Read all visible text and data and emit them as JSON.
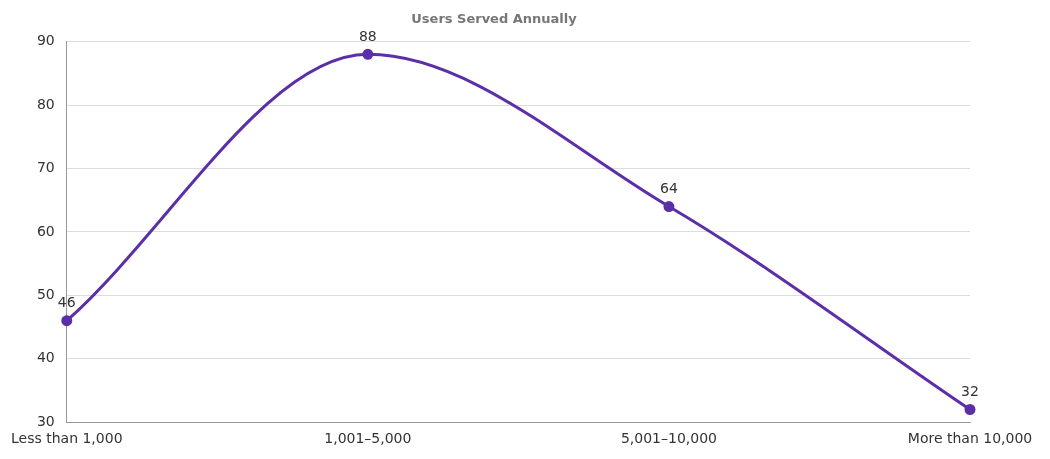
{
  "chart_data": {
    "type": "line",
    "title": "Users Served Annually",
    "categories": [
      "Less than 1,000",
      "1,001–5,000",
      "5,001–10,000",
      "More than 10,000"
    ],
    "series": [
      {
        "color": "#5b2fa8",
        "values": [
          46,
          88,
          64,
          32
        ]
      }
    ],
    "ylim": [
      30,
      90
    ],
    "yticks": [
      30,
      40,
      50,
      60,
      70,
      80,
      90
    ],
    "grid": "y",
    "data_labels": true,
    "marker": "circle",
    "line_style": "solid"
  }
}
